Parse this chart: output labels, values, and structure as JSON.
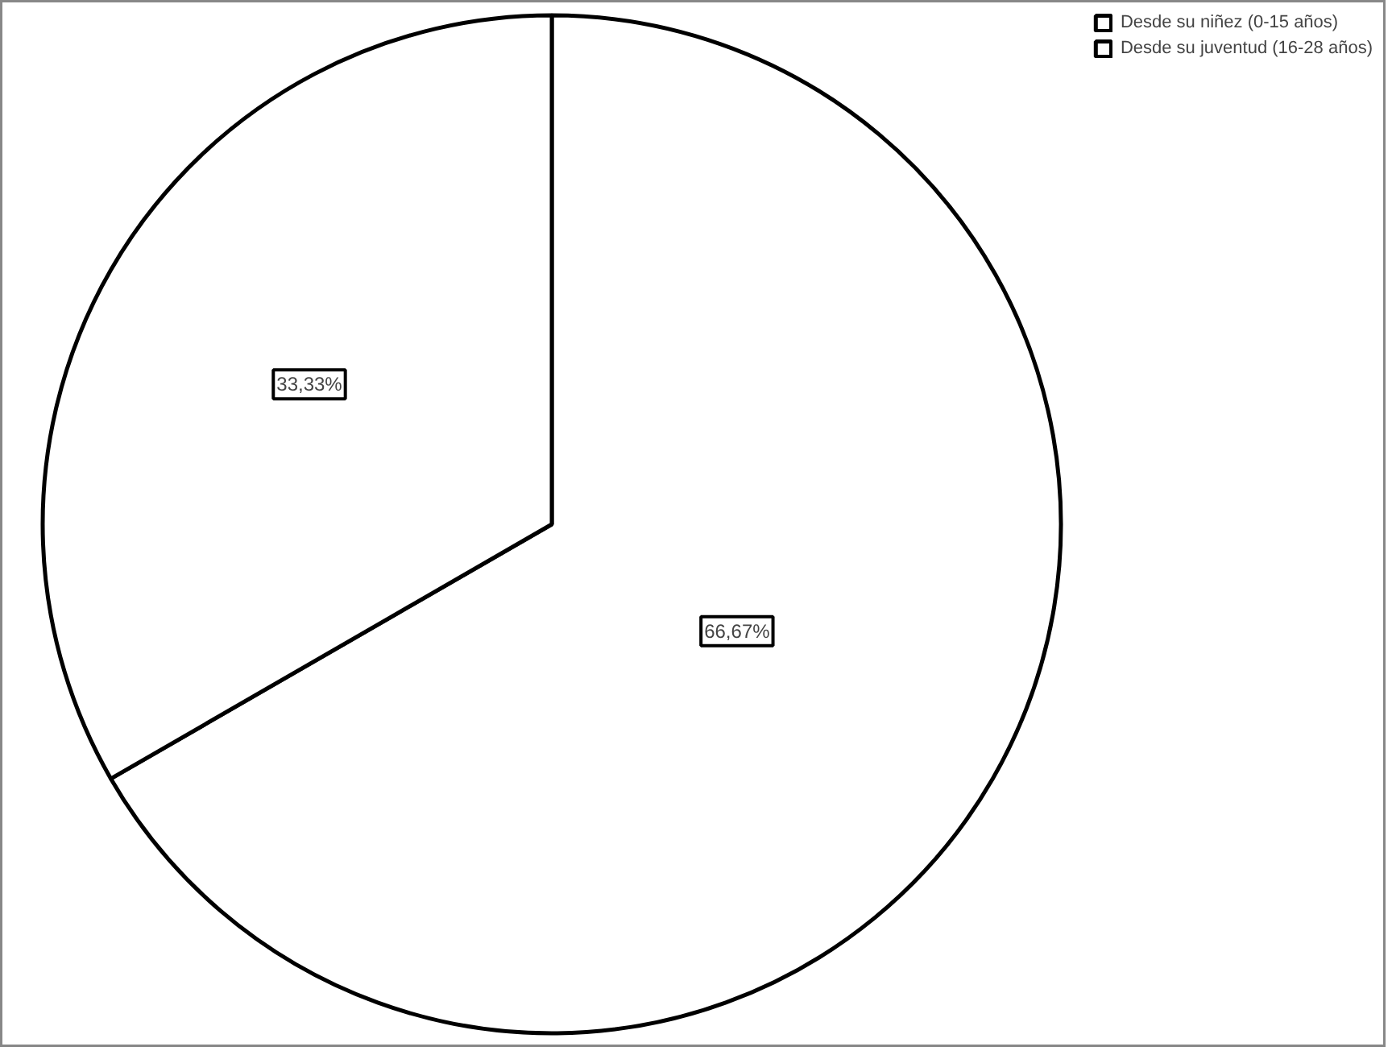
{
  "chart_data": {
    "type": "pie",
    "categories": [
      "Desde su niñez (0-15 años)",
      "Desde su juventud (16-28 años)"
    ],
    "values": [
      66.67,
      33.33
    ],
    "colors": [
      "#ffffff",
      "#ffffff"
    ],
    "value_labels": [
      "66,67%",
      "33,33%"
    ],
    "legend": "top right"
  }
}
